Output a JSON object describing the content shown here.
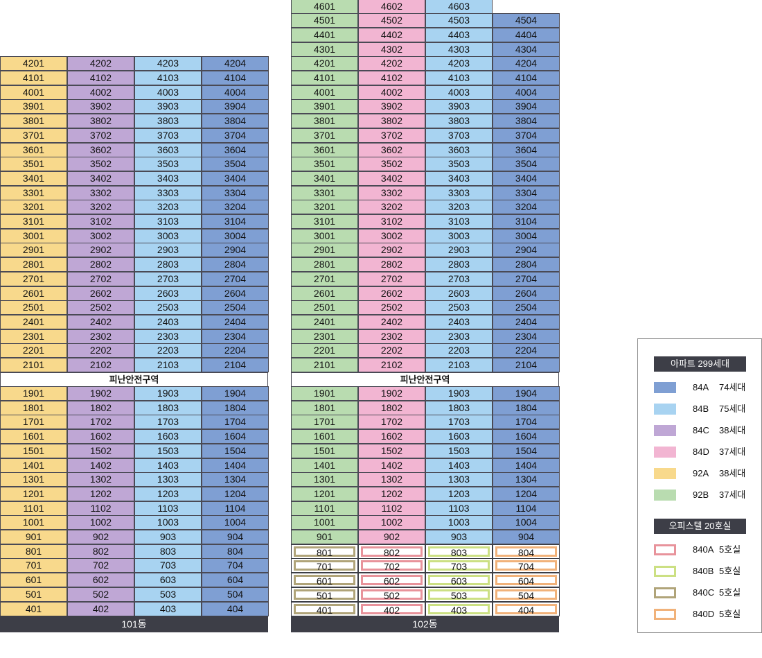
{
  "colors": {
    "84A": "#7f9fd3",
    "84B": "#a8d3f1",
    "84C": "#bfa7d5",
    "84D": "#f2b5d2",
    "92A": "#f8d98c",
    "92B": "#b9dcb0",
    "840A": "#e8939b",
    "840B": "#cce083",
    "840C": "#b0a479",
    "840D": "#f1b27a"
  },
  "buildings": [
    {
      "id": "101",
      "label": "101동",
      "refuge_label": "피난안전구역",
      "types": [
        "92A",
        "84C",
        "84B",
        "84A"
      ],
      "upper_floors": [
        42,
        41,
        40,
        39,
        38,
        37,
        36,
        35,
        34,
        33,
        32,
        31,
        30,
        29,
        28,
        27,
        26,
        25,
        24,
        23,
        22,
        21
      ],
      "lower_floors": [
        19,
        18,
        17,
        16,
        15,
        14,
        13,
        12,
        11,
        10,
        9,
        8,
        7,
        6,
        5,
        4
      ],
      "office_floors": [],
      "office_types": []
    },
    {
      "id": "102",
      "label": "102동",
      "refuge_label": "피난안전구역",
      "types": [
        "92B",
        "84D",
        "84B",
        "84A"
      ],
      "top_floor": 46,
      "top_floor_units": 3,
      "upper_floors": [
        46,
        45,
        44,
        43,
        42,
        41,
        40,
        39,
        38,
        37,
        36,
        35,
        34,
        33,
        32,
        31,
        30,
        29,
        28,
        27,
        26,
        25,
        24,
        23,
        22,
        21
      ],
      "lower_floors": [
        19,
        18,
        17,
        16,
        15,
        14,
        13,
        12,
        11,
        10,
        9,
        8,
        7,
        6,
        5,
        4
      ],
      "office_floors": [
        8,
        7,
        6,
        5,
        4
      ],
      "office_types": [
        "840C",
        "840A",
        "840B",
        "840D"
      ]
    }
  ],
  "legend": {
    "apt_title": "아파트 299세대",
    "apt_items": [
      {
        "code": "84A",
        "count": "74세대"
      },
      {
        "code": "84B",
        "count": "75세대"
      },
      {
        "code": "84C",
        "count": "38세대"
      },
      {
        "code": "84D",
        "count": "37세대"
      },
      {
        "code": "92A",
        "count": "38세대"
      },
      {
        "code": "92B",
        "count": "37세대"
      }
    ],
    "office_title": "오피스텔 20호실",
    "office_items": [
      {
        "code": "840A",
        "count": "5호실"
      },
      {
        "code": "840B",
        "count": "5호실"
      },
      {
        "code": "840C",
        "count": "5호실"
      },
      {
        "code": "840D",
        "count": "5호실"
      }
    ]
  }
}
